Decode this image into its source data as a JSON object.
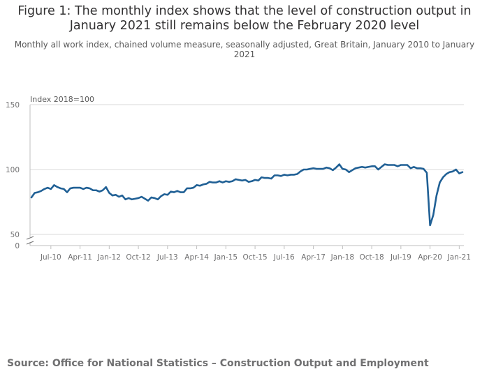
{
  "title": "Figure 1: The monthly index shows that the level of construction output in January 2021 still remains below the February 2020 level",
  "subtitle": "Monthly all work index, chained volume measure, seasonally adjusted, Great Britain, January 2010 to January 2021",
  "source": "Source: Office for National Statistics – Construction Output and Employment",
  "colors": {
    "line": "#206095",
    "grid": "#d9d9d9",
    "axis": "#bfbfbf"
  },
  "chart_data": {
    "type": "line",
    "title": "Figure 1: The monthly index shows that the level of construction output in January 2021 still remains below the February 2020 level",
    "ylabel": "Index 2018=100",
    "xlabel": "",
    "ylim": [
      0,
      150
    ],
    "yticks": [
      0,
      50,
      100,
      150
    ],
    "axis_break": true,
    "grid": true,
    "x_start": "2010-01",
    "x_end": "2021-01",
    "xticks": [
      "Jul-10",
      "Apr-11",
      "Jan-12",
      "Oct-12",
      "Jul-13",
      "Apr-14",
      "Jan-15",
      "Oct-15",
      "Jul-16",
      "Apr-17",
      "Jan-18",
      "Oct-18",
      "Jul-19",
      "Apr-20",
      "Jan-21"
    ],
    "series": [
      {
        "values": [
          78.5,
          82.0,
          82.5,
          83.5,
          85.0,
          86.0,
          85.0,
          88.0,
          86.5,
          85.5,
          85.0,
          82.5,
          85.5,
          86.0,
          86.0,
          86.0,
          85.0,
          86.0,
          85.5,
          84.0,
          84.0,
          83.0,
          84.0,
          86.5,
          82.0,
          80.0,
          80.5,
          79.0,
          80.0,
          77.0,
          78.0,
          77.0,
          77.5,
          78.0,
          79.0,
          77.5,
          76.0,
          78.5,
          78.0,
          77.0,
          79.5,
          81.0,
          80.5,
          83.0,
          82.5,
          83.5,
          82.5,
          82.5,
          85.5,
          85.5,
          86.0,
          88.0,
          87.5,
          88.5,
          89.0,
          90.5,
          90.0,
          90.0,
          91.0,
          90.0,
          91.0,
          90.5,
          91.0,
          92.5,
          92.0,
          91.5,
          92.0,
          90.5,
          91.0,
          92.0,
          91.5,
          94.0,
          93.5,
          93.5,
          93.0,
          95.5,
          95.5,
          95.0,
          96.0,
          95.5,
          96.0,
          96.0,
          96.5,
          98.5,
          100.0,
          100.0,
          100.5,
          101.0,
          100.5,
          100.5,
          100.5,
          101.5,
          101.0,
          99.5,
          101.5,
          104.0,
          100.5,
          100.0,
          98.0,
          99.5,
          101.0,
          101.5,
          102.0,
          101.5,
          102.0,
          102.5,
          102.5,
          100.0,
          102.0,
          104.0,
          103.5,
          103.5,
          103.5,
          102.5,
          103.5,
          103.5,
          103.5,
          101.0,
          102.0,
          101.0,
          101.0,
          100.5,
          97.5,
          57.0,
          65.0,
          80.0,
          90.0,
          94.0,
          96.5,
          98.0,
          98.5,
          100.0,
          97.0,
          98.0
        ]
      }
    ]
  }
}
